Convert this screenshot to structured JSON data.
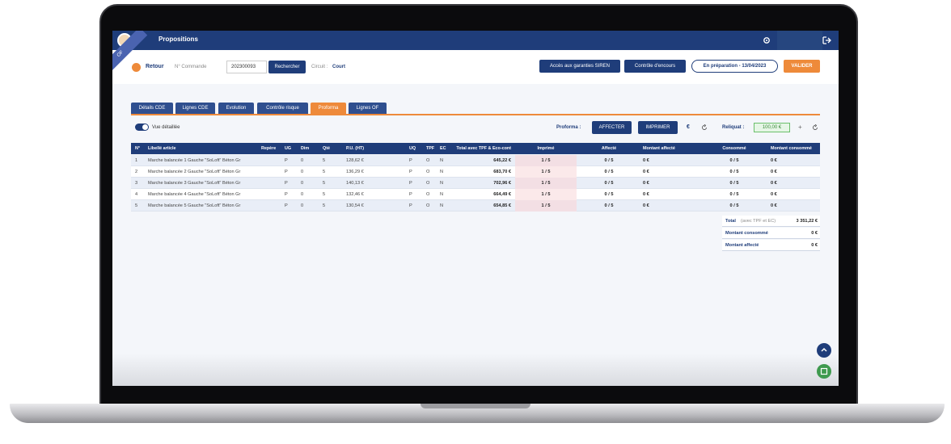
{
  "header": {
    "title": "Propositions",
    "ribbon": "OF"
  },
  "toolbar": {
    "back": "Retour",
    "order_label": "N° Commande",
    "order_number": "202300093",
    "search": "Rechercher",
    "circuit_label": "Circuit :",
    "circuit": "Court",
    "siren": "Accès aux garanties SIREN",
    "encours": "Contrôle d'encours",
    "status": "En préparation - 13/04/2023",
    "validate": "VALIDER"
  },
  "tabs": [
    "Détails CDE",
    "Lignes CDE",
    "Evolution",
    "Contrôle risque",
    "Proforma",
    "Lignes OF"
  ],
  "proforma_bar": {
    "toggle": "Vue détaillée",
    "proforma_label": "Proforma :",
    "assign": "AFFECTER",
    "print": "IMPRIMER",
    "currency": "€",
    "reliquat_label": "Reliquat :",
    "reliquat": "100,00 €",
    "add": "+"
  },
  "table": {
    "columns": [
      "N°",
      "Libellé article",
      "Repère",
      "UG",
      "Dim",
      "Qté",
      "P.U. (HT)",
      "UQ",
      "TPF",
      "EC",
      "Total avec TPF & Eco-cont",
      "Imprimé",
      "Affecté",
      "Montant affecté",
      "Consommé",
      "Montant consommé"
    ],
    "rows": [
      {
        "n": "1",
        "label": "Marche balancée 1 Gauche \"SoLoft\" Béton Gr",
        "ug": "P",
        "dim": "0",
        "qte": "5",
        "pu": "128,62 €",
        "uq": "P",
        "tpf": "O",
        "ec": "N",
        "total": "645,22 €",
        "imprime": "1 / 5",
        "affecte": "0 / 5",
        "montant_affecte": "0 €",
        "consomme": "0 / 5",
        "montant_consomme": "0 €"
      },
      {
        "n": "2",
        "label": "Marche balancée 2 Gauche \"SoLoft\" Béton Gr",
        "ug": "P",
        "dim": "0",
        "qte": "5",
        "pu": "136,29 €",
        "uq": "P",
        "tpf": "O",
        "ec": "N",
        "total": "683,70 €",
        "imprime": "1 / 5",
        "affecte": "0 / 5",
        "montant_affecte": "0 €",
        "consomme": "0 / 5",
        "montant_consomme": "0 €"
      },
      {
        "n": "3",
        "label": "Marche balancée 3 Gauche \"SoLoft\" Béton Gr",
        "ug": "P",
        "dim": "0",
        "qte": "5",
        "pu": "140,13 €",
        "uq": "P",
        "tpf": "O",
        "ec": "N",
        "total": "702,96 €",
        "imprime": "1 / 5",
        "affecte": "0 / 5",
        "montant_affecte": "0 €",
        "consomme": "0 / 5",
        "montant_consomme": "0 €"
      },
      {
        "n": "4",
        "label": "Marche balancée 4 Gauche \"SoLoft\" Béton Gr",
        "ug": "P",
        "dim": "0",
        "qte": "5",
        "pu": "132,46 €",
        "uq": "P",
        "tpf": "O",
        "ec": "N",
        "total": "664,49 €",
        "imprime": "1 / 5",
        "affecte": "0 / 5",
        "montant_affecte": "0 €",
        "consomme": "0 / 5",
        "montant_consomme": "0 €"
      },
      {
        "n": "5",
        "label": "Marche balancée 5 Gauche \"SoLoft\" Béton Gr",
        "ug": "P",
        "dim": "0",
        "qte": "5",
        "pu": "130,54 €",
        "uq": "P",
        "tpf": "O",
        "ec": "N",
        "total": "654,85 €",
        "imprime": "1 / 5",
        "affecte": "0 / 5",
        "montant_affecte": "0 €",
        "consomme": "0 / 5",
        "montant_consomme": "0 €"
      }
    ]
  },
  "summary": [
    {
      "label": "Total",
      "note": "(avec TPF et EC)",
      "value": "3 351,22 €"
    },
    {
      "label": "Montant consommé",
      "value": "0 €"
    },
    {
      "label": "Montant affecté",
      "value": "0 €"
    }
  ]
}
